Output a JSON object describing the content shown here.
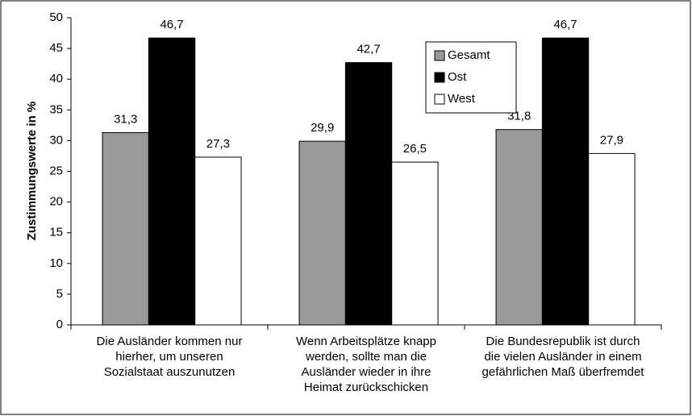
{
  "chart_data": {
    "type": "bar",
    "y_axis_label": "Zustimmungswerte in %",
    "categories": [
      [
        "Die Ausländer kommen nur",
        "hierher, um unseren",
        "Sozialstaat auszunutzen"
      ],
      [
        "Wenn Arbeitsplätze knapp",
        "werden, sollte man die",
        "Ausländer wieder in ihre",
        "Heimat zurückschicken"
      ],
      [
        "Die Bundesrepublik ist durch",
        "die vielen Ausländer in einem",
        "gefährlichen Maß überfremdet"
      ]
    ],
    "series": [
      {
        "name": "Gesamt",
        "color": "#999999",
        "values": [
          31.3,
          29.9,
          31.8
        ],
        "value_labels": [
          "31,3",
          "29,9",
          "31,8"
        ]
      },
      {
        "name": "Ost",
        "color": "#000000",
        "values": [
          46.7,
          42.7,
          46.7
        ],
        "value_labels": [
          "46,7",
          "42,7",
          "46,7"
        ]
      },
      {
        "name": "West",
        "color": "#ffffff",
        "values": [
          27.3,
          26.5,
          27.9
        ],
        "value_labels": [
          "27,3",
          "26,5",
          "27,9"
        ]
      }
    ],
    "ylim": [
      0,
      50
    ],
    "yticks": [
      0,
      5,
      10,
      15,
      20,
      25,
      30,
      35,
      40,
      45,
      50
    ],
    "legend": "top-right"
  }
}
